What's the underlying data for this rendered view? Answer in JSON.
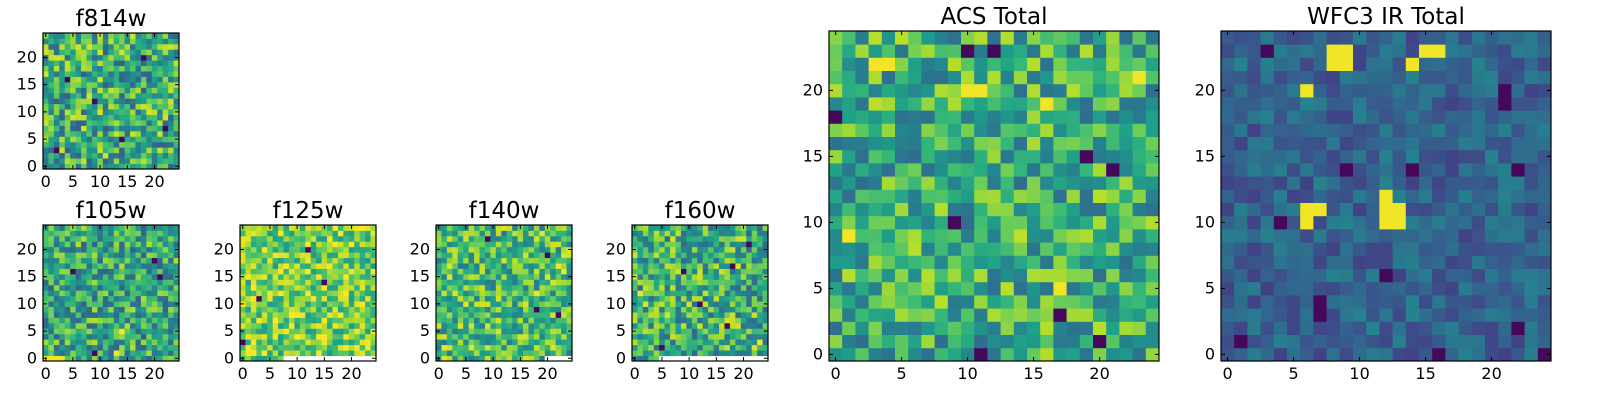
{
  "colormap": "viridis",
  "colors": {
    "viridis_low": "#440154",
    "viridis_mid": "#21918c",
    "viridis_high": "#fde725",
    "axis": "#000000",
    "background": "#ffffff"
  },
  "chart_data": [
    {
      "id": "f814w",
      "type": "heatmap",
      "title": "f814w",
      "grid_size": 25,
      "xlim": [
        0,
        25
      ],
      "ylim": [
        0,
        25
      ],
      "xticks": [
        0,
        5,
        10,
        15,
        20
      ],
      "yticks": [
        0,
        5,
        10,
        15,
        20
      ],
      "xtick_labels": [
        "0",
        "5",
        "10",
        "15",
        "20"
      ],
      "ytick_labels": [
        "0",
        "5",
        "10",
        "15",
        "20"
      ],
      "value_range": [
        0,
        1
      ],
      "texture": "fine noise, mostly green/teal with yellow and dark purple speckles",
      "seed": 11,
      "mean": 0.62,
      "spread": 0.2,
      "hotspots": [],
      "dark_cells": [
        [
          2,
          3
        ],
        [
          18,
          20
        ],
        [
          9,
          12
        ],
        [
          22,
          7
        ],
        [
          4,
          16
        ],
        [
          14,
          5
        ]
      ]
    },
    {
      "id": "f105w",
      "type": "heatmap",
      "title": "f105w",
      "grid_size": 25,
      "xlim": [
        0,
        25
      ],
      "ylim": [
        0,
        25
      ],
      "xticks": [
        0,
        5,
        10,
        15,
        20
      ],
      "yticks": [
        0,
        5,
        10,
        15,
        20
      ],
      "xtick_labels": [
        "0",
        "5",
        "10",
        "15",
        "20"
      ],
      "ytick_labels": [
        "0",
        "5",
        "10",
        "15",
        "20"
      ],
      "value_range": [
        0,
        1
      ],
      "texture": "blocky green/teal with yellow strip at bottom-left",
      "seed": 23,
      "mean": 0.6,
      "spread": 0.18,
      "hotspots": [
        [
          0,
          0
        ],
        [
          1,
          0
        ],
        [
          2,
          0
        ],
        [
          3,
          0
        ],
        [
          14,
          5
        ],
        [
          13,
          1
        ]
      ],
      "dark_cells": [
        [
          5,
          16
        ],
        [
          20,
          18
        ],
        [
          21,
          15
        ],
        [
          9,
          1
        ]
      ]
    },
    {
      "id": "f125w",
      "type": "heatmap",
      "title": "f125w",
      "grid_size": 25,
      "xlim": [
        0,
        25
      ],
      "ylim": [
        0,
        25
      ],
      "xticks": [
        0,
        5,
        10,
        15,
        20
      ],
      "yticks": [
        0,
        5,
        10,
        15,
        20
      ],
      "xtick_labels": [
        "0",
        "5",
        "10",
        "15",
        "20"
      ],
      "ytick_labels": [
        "0",
        "5",
        "10",
        "15",
        "20"
      ],
      "value_range": [
        0,
        1
      ],
      "texture": "bright yellow-green, white missing strip along bottom",
      "seed": 37,
      "mean": 0.78,
      "spread": 0.15,
      "hotspots": [
        [
          1,
          1
        ],
        [
          15,
          3
        ],
        [
          17,
          6
        ]
      ],
      "dark_cells": [
        [
          0,
          3
        ],
        [
          3,
          11
        ],
        [
          15,
          14
        ],
        [
          12,
          20
        ]
      ],
      "missing_bottom_from": 8
    },
    {
      "id": "f140w",
      "type": "heatmap",
      "title": "f140w",
      "grid_size": 25,
      "xlim": [
        0,
        25
      ],
      "ylim": [
        0,
        25
      ],
      "xticks": [
        0,
        5,
        10,
        15,
        20
      ],
      "yticks": [
        0,
        5,
        10,
        15,
        20
      ],
      "xtick_labels": [
        "0",
        "5",
        "10",
        "15",
        "20"
      ],
      "ytick_labels": [
        "0",
        "5",
        "10",
        "15",
        "20"
      ],
      "value_range": [
        0,
        1
      ],
      "texture": "green with yellow patches on the right",
      "seed": 41,
      "mean": 0.68,
      "spread": 0.17,
      "hotspots": [
        [
          23,
          16
        ],
        [
          22,
          17
        ],
        [
          18,
          12
        ],
        [
          1,
          2
        ]
      ],
      "dark_cells": [
        [
          20,
          19
        ],
        [
          18,
          9
        ],
        [
          22,
          8
        ],
        [
          9,
          22
        ]
      ],
      "missing_bottom_from": 20
    },
    {
      "id": "f160w",
      "type": "heatmap",
      "title": "f160w",
      "grid_size": 25,
      "xlim": [
        0,
        25
      ],
      "ylim": [
        0,
        25
      ],
      "xticks": [
        0,
        5,
        10,
        15,
        20
      ],
      "yticks": [
        0,
        5,
        10,
        15,
        20
      ],
      "xtick_labels": [
        "0",
        "5",
        "10",
        "15",
        "20"
      ],
      "ytick_labels": [
        "0",
        "5",
        "10",
        "15",
        "20"
      ],
      "value_range": [
        0,
        1
      ],
      "texture": "green/teal with scattered dark purple cells, white strip at bottom",
      "seed": 53,
      "mean": 0.64,
      "spread": 0.19,
      "hotspots": [
        [
          23,
          3
        ],
        [
          1,
          12
        ]
      ],
      "dark_cells": [
        [
          18,
          17
        ],
        [
          9,
          16
        ],
        [
          17,
          6
        ],
        [
          5,
          2
        ],
        [
          21,
          21
        ],
        [
          12,
          10
        ]
      ],
      "missing_bottom_from": 5
    },
    {
      "id": "acs_total",
      "type": "heatmap",
      "title": "ACS Total",
      "grid_size": 25,
      "xlim": [
        0,
        25
      ],
      "ylim": [
        0,
        25
      ],
      "xticks": [
        0,
        5,
        10,
        15,
        20
      ],
      "yticks": [
        0,
        5,
        10,
        15,
        20
      ],
      "xtick_labels": [
        "0",
        "5",
        "10",
        "15",
        "20"
      ],
      "ytick_labels": [
        "0",
        "5",
        "10",
        "15",
        "20"
      ],
      "value_range": [
        0,
        1
      ],
      "texture": "green/yellow noise with dark purple cells",
      "seed": 67,
      "mean": 0.63,
      "spread": 0.17,
      "hotspots": [
        [
          3,
          22
        ],
        [
          4,
          22
        ],
        [
          10,
          20
        ],
        [
          11,
          20
        ],
        [
          16,
          19
        ],
        [
          23,
          21
        ],
        [
          1,
          9
        ],
        [
          17,
          5
        ]
      ],
      "dark_cells": [
        [
          10,
          23
        ],
        [
          12,
          23
        ],
        [
          0,
          18
        ],
        [
          9,
          10
        ],
        [
          19,
          15
        ],
        [
          21,
          14
        ],
        [
          17,
          3
        ],
        [
          20,
          1
        ],
        [
          11,
          0
        ]
      ]
    },
    {
      "id": "wfc3_ir_total",
      "type": "heatmap",
      "title": "WFC3 IR Total",
      "grid_size": 25,
      "xlim": [
        0,
        25
      ],
      "ylim": [
        0,
        25
      ],
      "xticks": [
        0,
        5,
        10,
        15,
        20
      ],
      "yticks": [
        0,
        5,
        10,
        15,
        20
      ],
      "xtick_labels": [
        "0",
        "5",
        "10",
        "15",
        "20"
      ],
      "ytick_labels": [
        "0",
        "5",
        "10",
        "15",
        "20"
      ],
      "value_range": [
        0,
        1
      ],
      "texture": "dark teal/blue background with yellow blobs",
      "seed": 79,
      "mean": 0.32,
      "spread": 0.08,
      "hotspots": [
        [
          8,
          22
        ],
        [
          9,
          22
        ],
        [
          8,
          23
        ],
        [
          9,
          23
        ],
        [
          15,
          23
        ],
        [
          16,
          23
        ],
        [
          14,
          22
        ],
        [
          6,
          11
        ],
        [
          7,
          11
        ],
        [
          6,
          10
        ],
        [
          12,
          12
        ],
        [
          12,
          11
        ],
        [
          13,
          11
        ],
        [
          12,
          10
        ],
        [
          13,
          10
        ],
        [
          6,
          20
        ]
      ],
      "dark_cells": [
        [
          3,
          23
        ],
        [
          21,
          19
        ],
        [
          21,
          20
        ],
        [
          9,
          14
        ],
        [
          14,
          14
        ],
        [
          22,
          14
        ],
        [
          4,
          10
        ],
        [
          12,
          6
        ],
        [
          7,
          4
        ],
        [
          7,
          3
        ],
        [
          1,
          1
        ],
        [
          16,
          0
        ],
        [
          24,
          0
        ],
        [
          22,
          2
        ]
      ]
    }
  ]
}
